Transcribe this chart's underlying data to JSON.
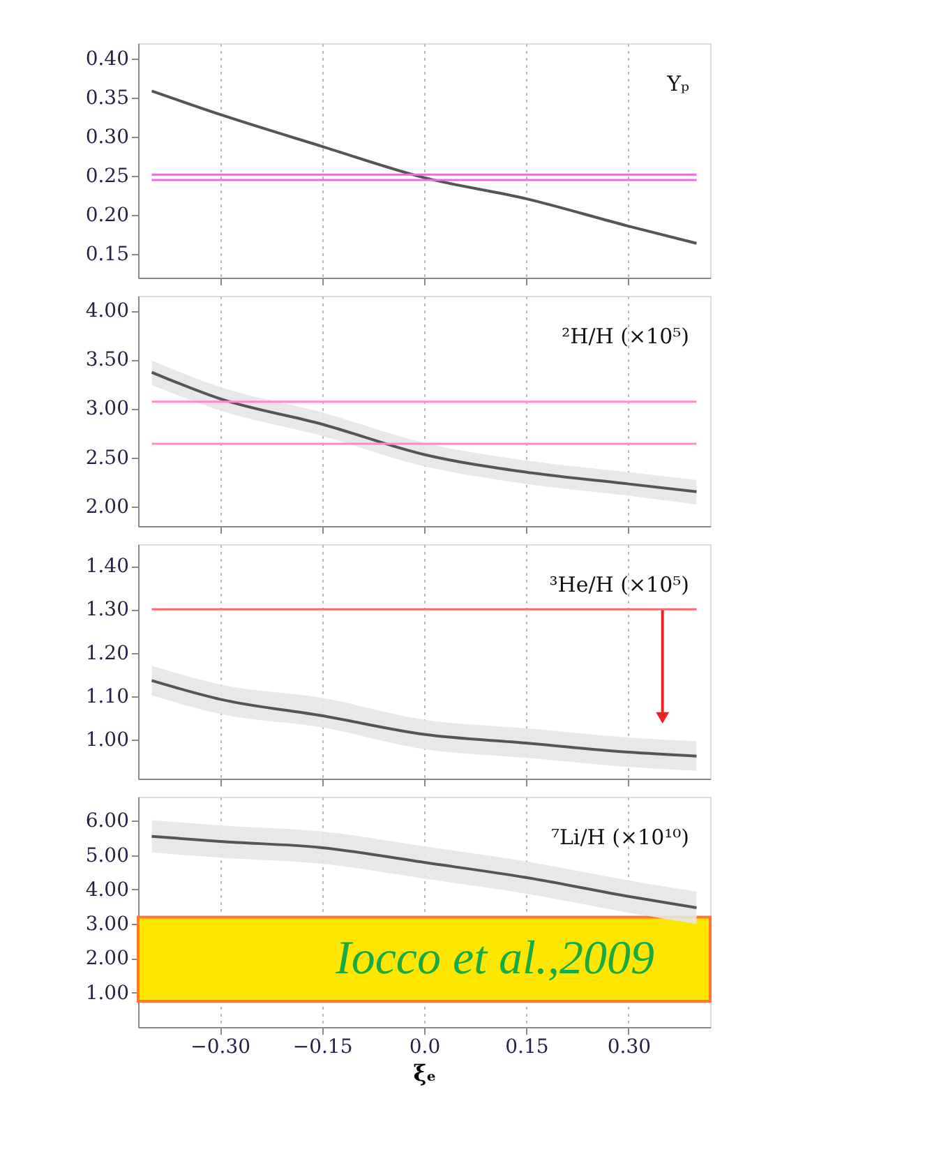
{
  "chart_data": [
    {
      "type": "line",
      "xlim": [
        -0.42,
        0.42
      ],
      "ylim": [
        0.12,
        0.42
      ],
      "tick_labels": "y",
      "grid": "x",
      "xticks": [
        {
          "value": -0.3,
          "label": null
        },
        {
          "value": -0.15,
          "label": null
        },
        {
          "value": 0,
          "label": null
        },
        {
          "value": 0.15,
          "label": null
        },
        {
          "value": 0.3,
          "label": null
        }
      ],
      "yticks": [
        {
          "value": 0.15,
          "label": "0.15"
        },
        {
          "value": 0.2,
          "label": "0.20"
        },
        {
          "value": 0.25,
          "label": "0.25"
        },
        {
          "value": 0.3,
          "label": "0.30"
        },
        {
          "value": 0.35,
          "label": "0.35"
        },
        {
          "value": 0.4,
          "label": "0.40"
        }
      ],
      "series": [
        {
          "color": "#555555",
          "x": [
            -0.4,
            -0.3,
            -0.15,
            0,
            0.15,
            0.3,
            0.4
          ],
          "values": [
            0.359,
            0.329,
            0.288,
            0.248,
            0.221,
            0.186,
            0.164
          ]
        }
      ],
      "ref_lines": [
        {
          "axis": "y",
          "value": 0.252,
          "color": "#ee66ee"
        },
        {
          "axis": "y",
          "value": 0.245,
          "color": "#ee66ee"
        }
      ],
      "annotations": [
        "Yₚ"
      ]
    },
    {
      "type": "line",
      "xlim": [
        -0.42,
        0.42
      ],
      "ylim": [
        1.8,
        4.15
      ],
      "tick_labels": "y",
      "grid": "x",
      "xticks": [
        {
          "value": -0.3,
          "label": null
        },
        {
          "value": -0.15,
          "label": null
        },
        {
          "value": 0,
          "label": null
        },
        {
          "value": 0.15,
          "label": null
        },
        {
          "value": 0.3,
          "label": null
        }
      ],
      "yticks": [
        {
          "value": 2,
          "label": "2.00"
        },
        {
          "value": 2.5,
          "label": "2.50"
        },
        {
          "value": 3,
          "label": "3.00"
        },
        {
          "value": 3.5,
          "label": "3.50"
        },
        {
          "value": 4,
          "label": "4.00"
        }
      ],
      "series": [
        {
          "color": "#555555",
          "x": [
            -0.4,
            -0.3,
            -0.15,
            0,
            0.15,
            0.3,
            0.4
          ],
          "values": [
            3.37,
            3.1,
            2.84,
            2.53,
            2.35,
            2.23,
            2.15
          ],
          "lower": [
            3.24,
            2.98,
            2.72,
            2.41,
            2.23,
            2.11,
            2.02
          ],
          "upper": [
            3.49,
            3.22,
            2.96,
            2.65,
            2.47,
            2.35,
            2.27
          ]
        }
      ],
      "ref_lines": [
        {
          "axis": "y",
          "value": 3.07,
          "color": "#ff88cc"
        },
        {
          "axis": "y",
          "value": 2.64,
          "color": "#ff88cc"
        }
      ],
      "annotations": [
        "²H/H (×10⁵)"
      ]
    },
    {
      "type": "line",
      "xlim": [
        -0.42,
        0.42
      ],
      "ylim": [
        0.91,
        1.45
      ],
      "tick_labels": "y",
      "grid": "x",
      "xticks": [
        {
          "value": -0.3,
          "label": null
        },
        {
          "value": -0.15,
          "label": null
        },
        {
          "value": 0,
          "label": null
        },
        {
          "value": 0.15,
          "label": null
        },
        {
          "value": 0.3,
          "label": null
        }
      ],
      "yticks": [
        {
          "value": 1,
          "label": "1.00"
        },
        {
          "value": 1.1,
          "label": "1.10"
        },
        {
          "value": 1.2,
          "label": "1.20"
        },
        {
          "value": 1.3,
          "label": "1.30"
        },
        {
          "value": 1.4,
          "label": "1.40"
        }
      ],
      "series": [
        {
          "color": "#555555",
          "x": [
            -0.4,
            -0.3,
            -0.15,
            0,
            0.15,
            0.3,
            0.4
          ],
          "values": [
            1.136,
            1.093,
            1.055,
            1.012,
            0.992,
            0.971,
            0.962
          ],
          "lower": [
            1.102,
            1.059,
            1.028,
            0.978,
            0.958,
            0.937,
            0.928
          ],
          "upper": [
            1.17,
            1.127,
            1.096,
            1.046,
            1.026,
            1.005,
            0.996
          ]
        },
        {
          "type": "line",
          "color": "#ee2222",
          "marker": "triangle",
          "x": [
            0.35,
            0.35
          ],
          "values": [
            1.3,
            1.05
          ]
        }
      ],
      "ref_lines": [
        {
          "axis": "y",
          "value": 1.3,
          "color": "#ff6677"
        }
      ],
      "annotations": [
        "³He/H (×10⁵)"
      ]
    },
    {
      "type": "line",
      "xlim": [
        -0.42,
        0.42
      ],
      "ylim": [
        0,
        6.7
      ],
      "grid": "x",
      "xlabel": "ξₑ",
      "xticks": [
        {
          "value": -0.3,
          "label": "−0.30"
        },
        {
          "value": -0.15,
          "label": "−0.15"
        },
        {
          "value": 0,
          "label": "0.0"
        },
        {
          "value": 0.15,
          "label": "0.15"
        },
        {
          "value": 0.3,
          "label": "0.30"
        }
      ],
      "yticks": [
        {
          "value": 1,
          "label": "1.00"
        },
        {
          "value": 2,
          "label": "2.00"
        },
        {
          "value": 3,
          "label": "3.00"
        },
        {
          "value": 4,
          "label": "4.00"
        },
        {
          "value": 5,
          "label": "5.00"
        },
        {
          "value": 6,
          "label": "6.00"
        }
      ],
      "series": [
        {
          "color": "#555555",
          "x": [
            -0.4,
            -0.3,
            -0.15,
            0,
            0.15,
            0.3,
            0.4
          ],
          "values": [
            5.55,
            5.4,
            5.22,
            4.79,
            4.35,
            3.8,
            3.47
          ],
          "lower": [
            5.08,
            4.93,
            4.75,
            4.32,
            3.88,
            3.33,
            3.0
          ],
          "upper": [
            6.02,
            5.87,
            5.69,
            5.26,
            4.82,
            4.27,
            3.94
          ]
        }
      ],
      "bands": [
        {
          "axis": "y",
          "from": 0.75,
          "to": 3.2,
          "label": "Iocco et al.,2009",
          "color": "#ffe600"
        }
      ],
      "annotations": [
        "⁷Li/H (×10¹⁰)"
      ]
    }
  ]
}
